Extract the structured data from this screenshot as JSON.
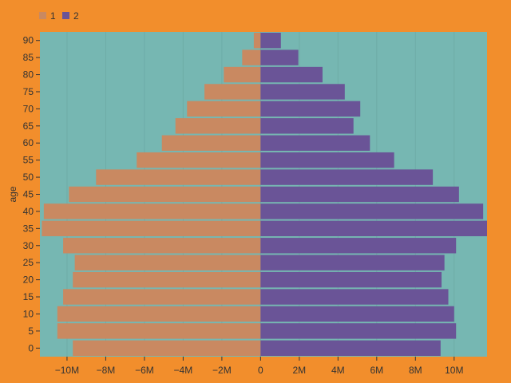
{
  "chart_data": {
    "type": "bar",
    "orientation": "horizontal",
    "stacking": "diverging",
    "ylabel": "age",
    "xlabel": "",
    "categories": [
      "0",
      "5",
      "10",
      "15",
      "20",
      "25",
      "30",
      "35",
      "40",
      "45",
      "50",
      "55",
      "60",
      "65",
      "70",
      "75",
      "80",
      "85",
      "90"
    ],
    "series": [
      {
        "name": "1",
        "values": [
          -9.7,
          -10.5,
          -10.5,
          -10.2,
          -9.7,
          -9.6,
          -10.2,
          -11.3,
          -11.2,
          -9.9,
          -8.5,
          -6.4,
          -5.1,
          -4.4,
          -3.8,
          -2.9,
          -1.9,
          -0.95,
          -0.35
        ]
      },
      {
        "name": "2",
        "values": [
          9.3,
          10.1,
          10.0,
          9.7,
          9.35,
          9.5,
          10.1,
          11.7,
          11.5,
          10.25,
          8.9,
          6.9,
          5.65,
          4.8,
          5.15,
          4.35,
          3.2,
          1.95,
          1.05
        ]
      }
    ],
    "x_ticks": [
      -10,
      -8,
      -6,
      -4,
      -2,
      0,
      2,
      4,
      6,
      8,
      10
    ],
    "x_tick_labels": [
      "−10M",
      "−8M",
      "−6M",
      "−4M",
      "−2M",
      "0",
      "2M",
      "4M",
      "6M",
      "8M",
      "10M"
    ],
    "xlim": [
      -11.4,
      11.7
    ],
    "legend_position": "top-left",
    "colors": {
      "background": "#f28e2c",
      "plot_area": "#76b7b2",
      "series_1": "#c98961",
      "series_2": "#6a5497",
      "grid": "#6eaca7"
    },
    "grid": true
  }
}
